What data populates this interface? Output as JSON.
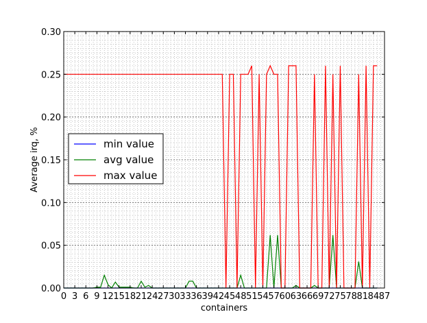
{
  "chart_data": {
    "type": "line",
    "title": "",
    "xlabel": "containers",
    "ylabel": "Average irq, %",
    "xlim": [
      0,
      87
    ],
    "ylim": [
      0,
      0.3
    ],
    "xticks": [
      0,
      3,
      6,
      9,
      12,
      15,
      18,
      21,
      24,
      27,
      30,
      33,
      36,
      39,
      42,
      45,
      48,
      51,
      54,
      57,
      60,
      63,
      66,
      69,
      72,
      75,
      78,
      81,
      84,
      87
    ],
    "yticks": [
      "0.00",
      "0.05",
      "0.10",
      "0.15",
      "0.20",
      "0.25",
      "0.30"
    ],
    "grid": true,
    "minor_grid": true,
    "legend_placement": "center-left",
    "x": [
      0,
      1,
      2,
      3,
      4,
      5,
      6,
      7,
      8,
      9,
      10,
      11,
      12,
      13,
      14,
      15,
      16,
      17,
      18,
      19,
      20,
      21,
      22,
      23,
      24,
      25,
      26,
      27,
      28,
      29,
      30,
      31,
      32,
      33,
      34,
      35,
      36,
      37,
      38,
      39,
      40,
      41,
      42,
      43,
      44,
      45,
      46,
      47,
      48,
      49,
      50,
      51,
      52,
      53,
      54,
      55,
      56,
      57,
      58,
      59,
      60,
      61,
      62,
      63,
      64,
      65,
      66,
      67,
      68,
      69,
      70,
      71,
      72,
      73,
      74,
      75,
      76,
      77,
      78,
      79,
      80,
      81,
      82,
      83,
      84,
      85
    ],
    "series": [
      {
        "name": "min value",
        "color": "#0000ff",
        "values": [
          0,
          0,
          0,
          0,
          0,
          0,
          0,
          0,
          0,
          0,
          0,
          0,
          0,
          0,
          0,
          0,
          0,
          0,
          0,
          0,
          0,
          0,
          0,
          0,
          0,
          0,
          0,
          0,
          0,
          0,
          0,
          0,
          0,
          0,
          0,
          0,
          0,
          0,
          0,
          0,
          0,
          0,
          0,
          0,
          0,
          0,
          0,
          0,
          0,
          0,
          0,
          0,
          0,
          0,
          0,
          0,
          0,
          0,
          0,
          0,
          0,
          0,
          0,
          0,
          0,
          0,
          0,
          0,
          0,
          0,
          0,
          0,
          0,
          0,
          0,
          0,
          0,
          0,
          0,
          0,
          0,
          0,
          0,
          0,
          0,
          0
        ]
      },
      {
        "name": "avg value",
        "color": "#008000",
        "values": [
          0,
          0,
          0,
          0,
          0,
          0,
          0,
          0,
          0,
          0.001,
          0.001,
          0.015,
          0.004,
          0,
          0.007,
          0.001,
          0.001,
          0.001,
          0.001,
          0,
          0,
          0.008,
          0.001,
          0.003,
          0,
          0,
          0,
          0,
          0,
          0,
          0,
          0,
          0,
          0,
          0.008,
          0.008,
          0,
          0,
          0,
          0,
          0,
          0,
          0,
          0,
          0,
          0,
          0,
          0,
          0.015,
          0,
          0,
          0,
          0,
          0,
          0,
          0,
          0.062,
          0,
          0.062,
          0,
          0,
          0,
          0,
          0.003,
          0,
          0,
          0,
          0,
          0.003,
          0,
          0,
          0,
          0,
          0.062,
          0,
          0,
          0,
          0,
          0,
          0,
          0.031,
          0,
          0,
          0,
          0,
          0
        ]
      },
      {
        "name": "max value",
        "color": "#ff0000",
        "values": [
          0.25,
          0.25,
          0.25,
          0.25,
          0.25,
          0.25,
          0.25,
          0.25,
          0.25,
          0.25,
          0.25,
          0.25,
          0.25,
          0.25,
          0.25,
          0.25,
          0.25,
          0.25,
          0.25,
          0.25,
          0.25,
          0.25,
          0.25,
          0.25,
          0.25,
          0.25,
          0.25,
          0.25,
          0.25,
          0.25,
          0.25,
          0.25,
          0.25,
          0.25,
          0.25,
          0.25,
          0.25,
          0.25,
          0.25,
          0.25,
          0.25,
          0.25,
          0.25,
          0.25,
          0,
          0.25,
          0.25,
          0,
          0.25,
          0.25,
          0.25,
          0.26,
          0,
          0.25,
          0,
          0.25,
          0.26,
          0.25,
          0.25,
          0,
          0,
          0.26,
          0.26,
          0.26,
          0,
          0,
          0,
          0,
          0.25,
          0,
          0,
          0.26,
          0,
          0.25,
          0,
          0.26,
          0,
          0,
          0,
          0,
          0.25,
          0,
          0.26,
          0,
          0.26,
          0.26
        ]
      }
    ]
  }
}
